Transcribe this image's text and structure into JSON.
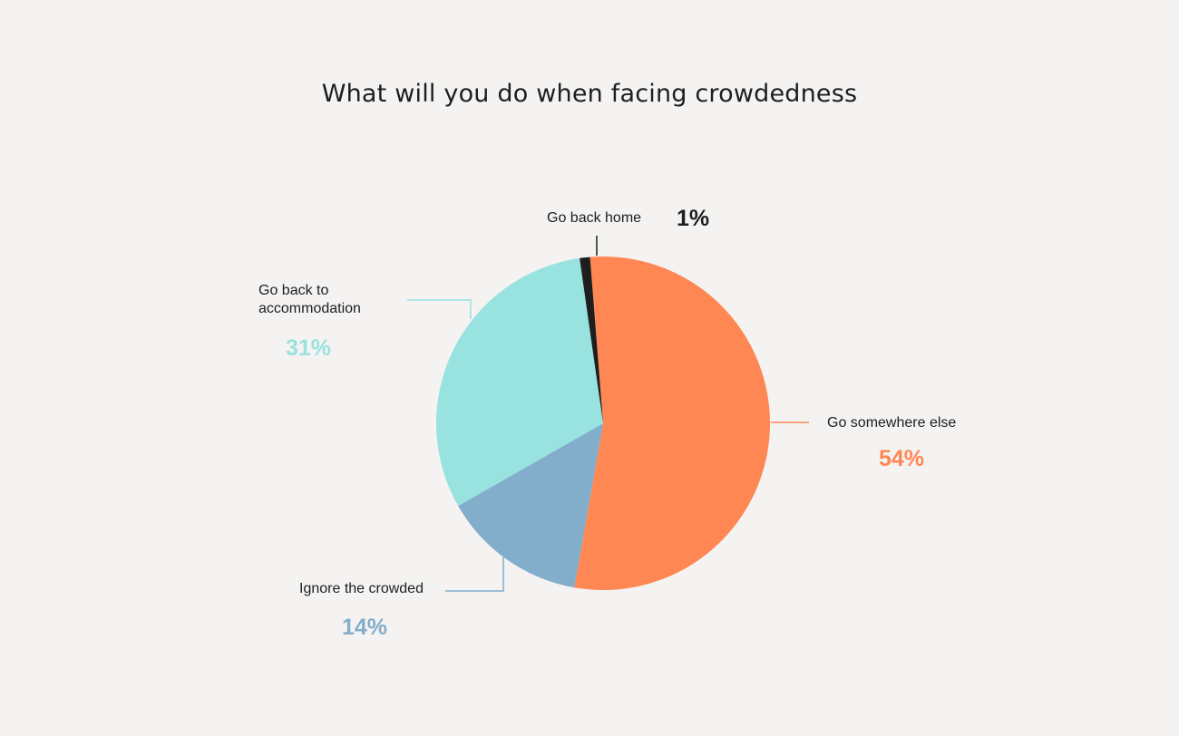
{
  "chart_data": {
    "type": "pie",
    "title": "What will you do when facing crowdedness",
    "categories": [
      "Go somewhere else",
      "Ignore the crowded",
      "Go back to accommodation",
      "Go back home"
    ],
    "values": [
      54,
      14,
      31,
      1
    ],
    "value_labels": [
      "54%",
      "14%",
      "31%",
      "1%"
    ],
    "colors": [
      "#ff8753",
      "#82adcb",
      "#98e2df",
      "#1e1e1e"
    ],
    "start_angle_deg": 0,
    "direction": "clockwise",
    "legend": "none",
    "label_style": "callout-lines"
  }
}
